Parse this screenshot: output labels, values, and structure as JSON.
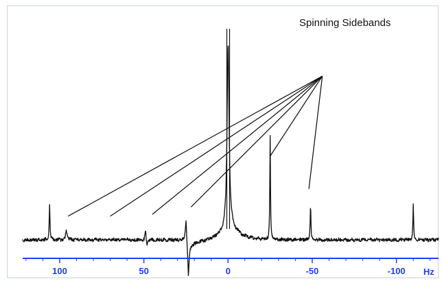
{
  "chart_data": {
    "type": "line",
    "title": "",
    "xlabel": "",
    "ylabel": "",
    "x_unit": "Hz",
    "x_axis_direction": "reversed",
    "xlim": [
      122,
      -125
    ],
    "ylim": [
      -0.08,
      1.08
    ],
    "grid": false,
    "x_ticks": [
      100,
      50,
      0,
      -50,
      -100
    ],
    "tick_labels": [
      "100",
      "50",
      "0",
      "-50",
      "-100"
    ],
    "annotation": {
      "text": "Spinning Sidebands",
      "source_point": {
        "x": -56,
        "y": 0.9
      },
      "target_points": [
        {
          "x": 95,
          "y": 0.13
        },
        {
          "x": 70,
          "y": 0.13
        },
        {
          "x": 45,
          "y": 0.14
        },
        {
          "x": 22,
          "y": 0.18
        },
        {
          "x": -25,
          "y": 0.46
        },
        {
          "x": -48,
          "y": 0.28
        }
      ]
    },
    "series": [
      {
        "peaks": [
          {
            "x": 0,
            "y": 1.0
          },
          {
            "x": 106,
            "y": 0.19
          },
          {
            "x": 96,
            "y": 0.05
          },
          {
            "x": 49,
            "y": 0.05
          },
          {
            "x": 25,
            "y": 0.12
          },
          {
            "x": -25,
            "y": 0.58
          },
          {
            "x": -49,
            "y": 0.2
          },
          {
            "x": -110,
            "y": 0.19
          }
        ]
      }
    ],
    "colors": {
      "trace": "#111111",
      "axis": "#1f3cff",
      "frame": "#c9d3d9",
      "annotation": "#111111"
    }
  }
}
